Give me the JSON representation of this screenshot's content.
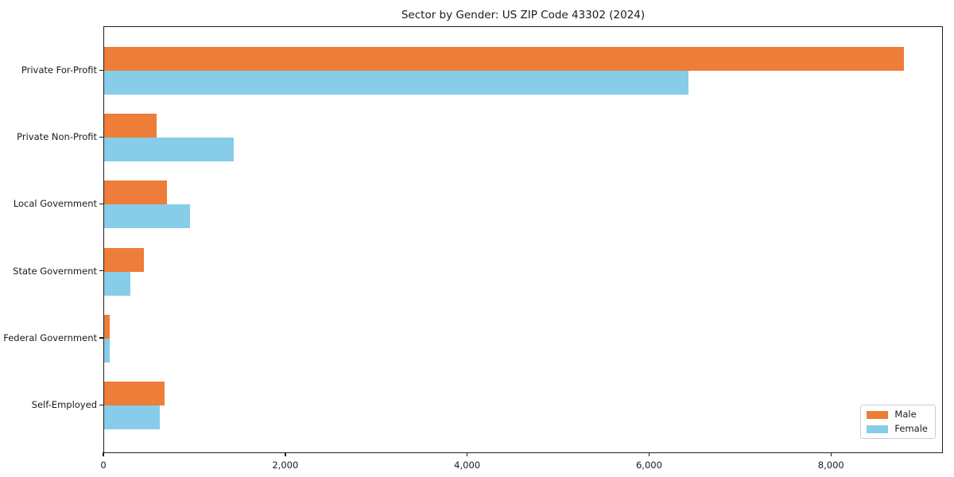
{
  "chart_data": {
    "type": "bar",
    "orientation": "horizontal",
    "title": "Sector by Gender: US ZIP Code 43302 (2024)",
    "categories": [
      "Private For-Profit",
      "Private Non-Profit",
      "Local Government",
      "State Government",
      "Federal Government",
      "Self-Employed"
    ],
    "series": [
      {
        "name": "Male",
        "color": "#ed7d38",
        "values": [
          8790,
          580,
          690,
          440,
          65,
          660
        ]
      },
      {
        "name": "Female",
        "color": "#87cde9",
        "values": [
          6420,
          1420,
          940,
          290,
          60,
          610
        ]
      }
    ],
    "xlabel": "",
    "ylabel": "",
    "xlim": [
      0,
      9230
    ],
    "x_ticks": [
      0,
      2000,
      4000,
      6000,
      8000
    ],
    "x_tick_labels": [
      "0",
      "2,000",
      "4,000",
      "6,000",
      "8,000"
    ],
    "grid": false,
    "legend": {
      "position": "lower right",
      "entries": [
        "Male",
        "Female"
      ]
    },
    "colors": {
      "spine": "#1f1f1f",
      "background": "#ffffff",
      "text": "#1a1a1a"
    }
  }
}
